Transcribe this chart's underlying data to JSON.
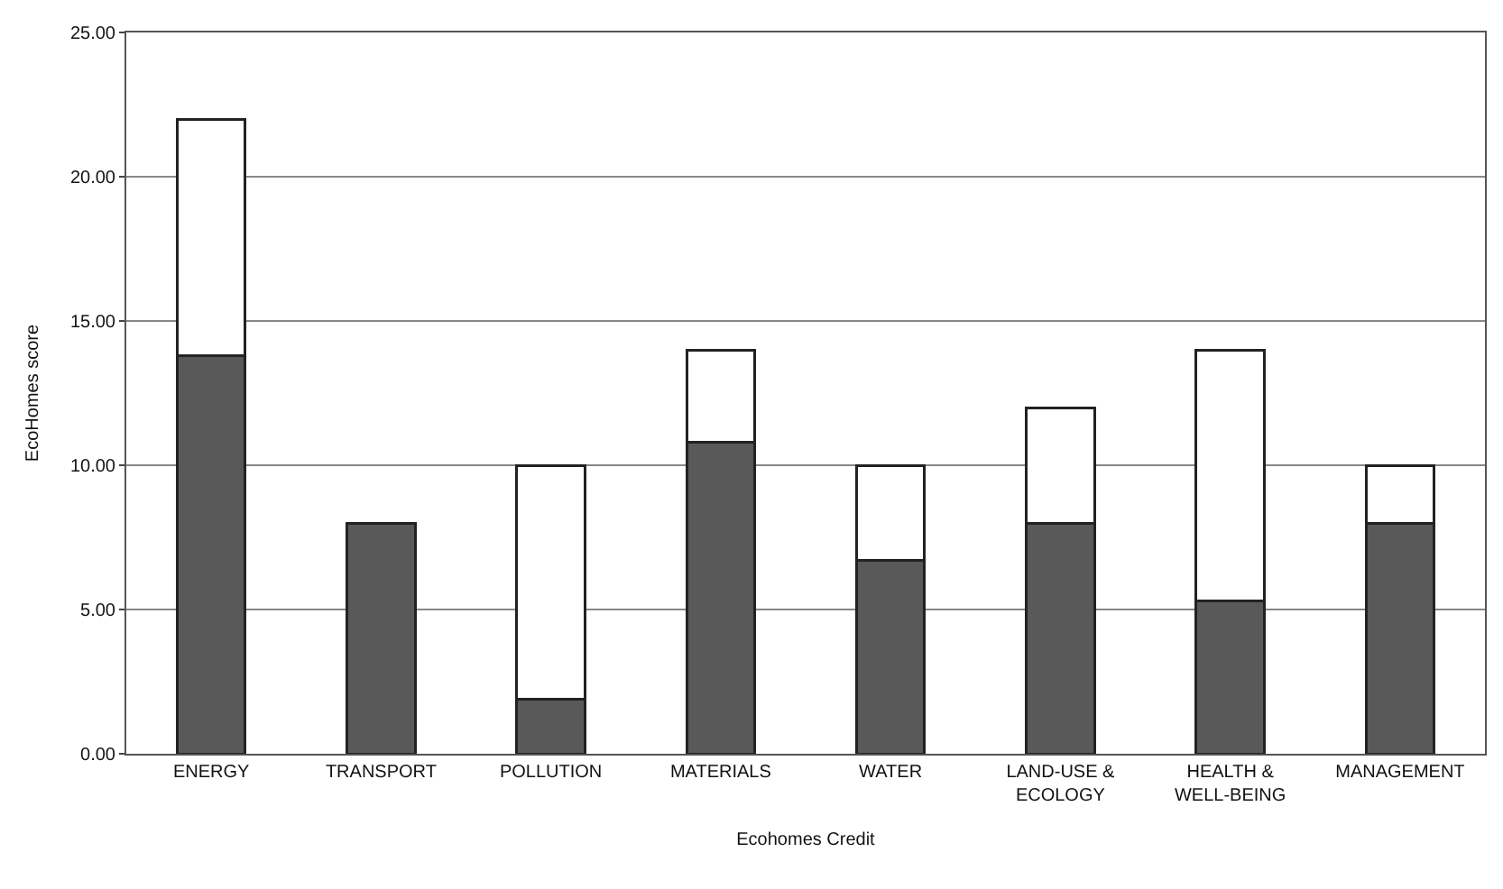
{
  "chart_data": {
    "type": "bar",
    "stacked": true,
    "xlabel": "Ecohomes Credit",
    "ylabel": "EcoHomes score",
    "categories": [
      "ENERGY",
      "TRANSPORT",
      "POLLUTION",
      "MATERIALS",
      "WATER",
      "LAND-USE & ECOLOGY",
      "HEALTH & WELL-BEING",
      "MANAGEMENT"
    ],
    "series": [
      {
        "color": "#595959",
        "values": [
          13.8,
          8.0,
          1.9,
          10.8,
          6.7,
          8.0,
          5.3,
          8.0
        ]
      },
      {
        "color": "#ffffff",
        "values": [
          8.2,
          null,
          8.1,
          3.2,
          3.3,
          4.0,
          8.7,
          2.0
        ]
      }
    ],
    "ylim": [
      0,
      25
    ],
    "yticks": [
      {
        "value": 0,
        "label": "0.00"
      },
      {
        "value": 5,
        "label": "5.00"
      },
      {
        "value": 10,
        "label": "10.00"
      },
      {
        "value": 15,
        "label": "15.00"
      },
      {
        "value": 20,
        "label": "20.00"
      },
      {
        "value": 25,
        "label": "25.00"
      }
    ],
    "grid": "y"
  }
}
